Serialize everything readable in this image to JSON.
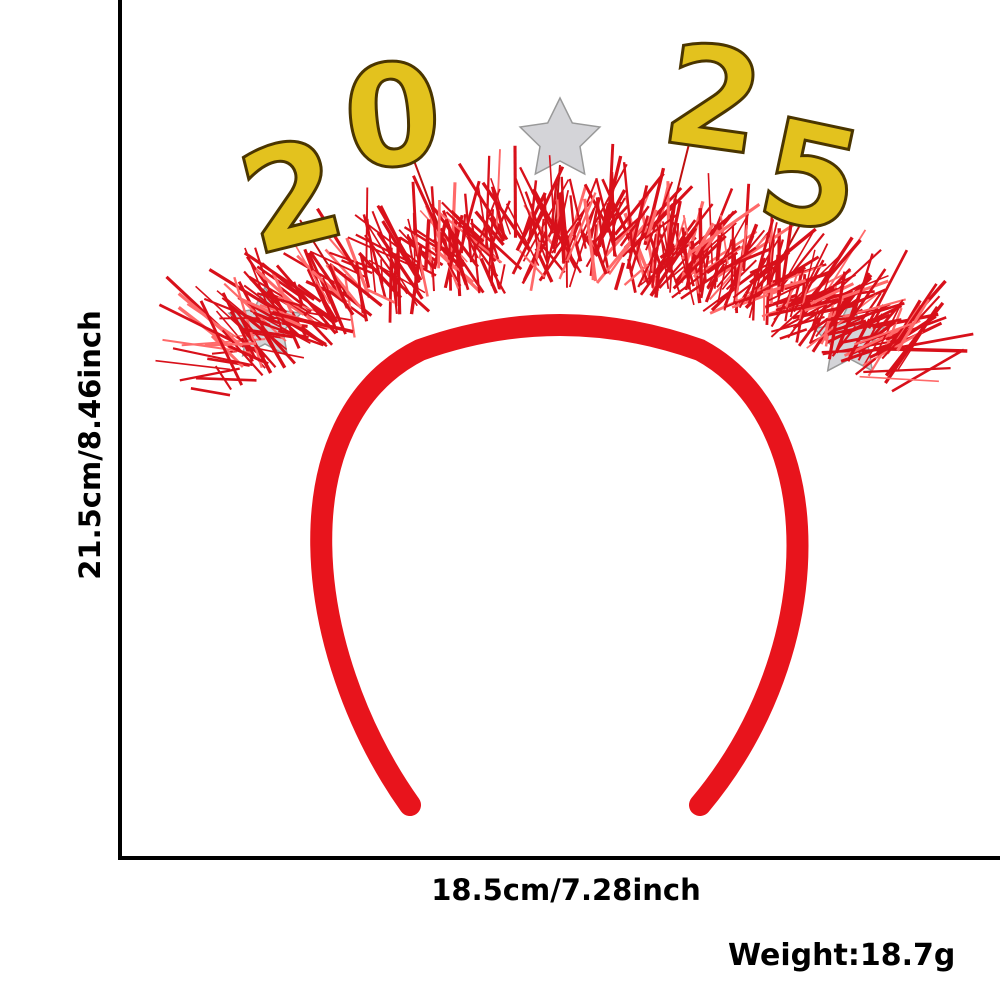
{
  "dimensions": {
    "height": "21.5cm/8.46inch",
    "width": "18.5cm/7.28inch",
    "weight": "Weight:18.7g"
  },
  "product": {
    "digits": [
      "2",
      "0",
      "2",
      "5"
    ],
    "colors": {
      "band": "#e8141c",
      "tinsel": "#d8101a",
      "gold": "#e3c21e",
      "silver": "#d4d4d8"
    }
  }
}
